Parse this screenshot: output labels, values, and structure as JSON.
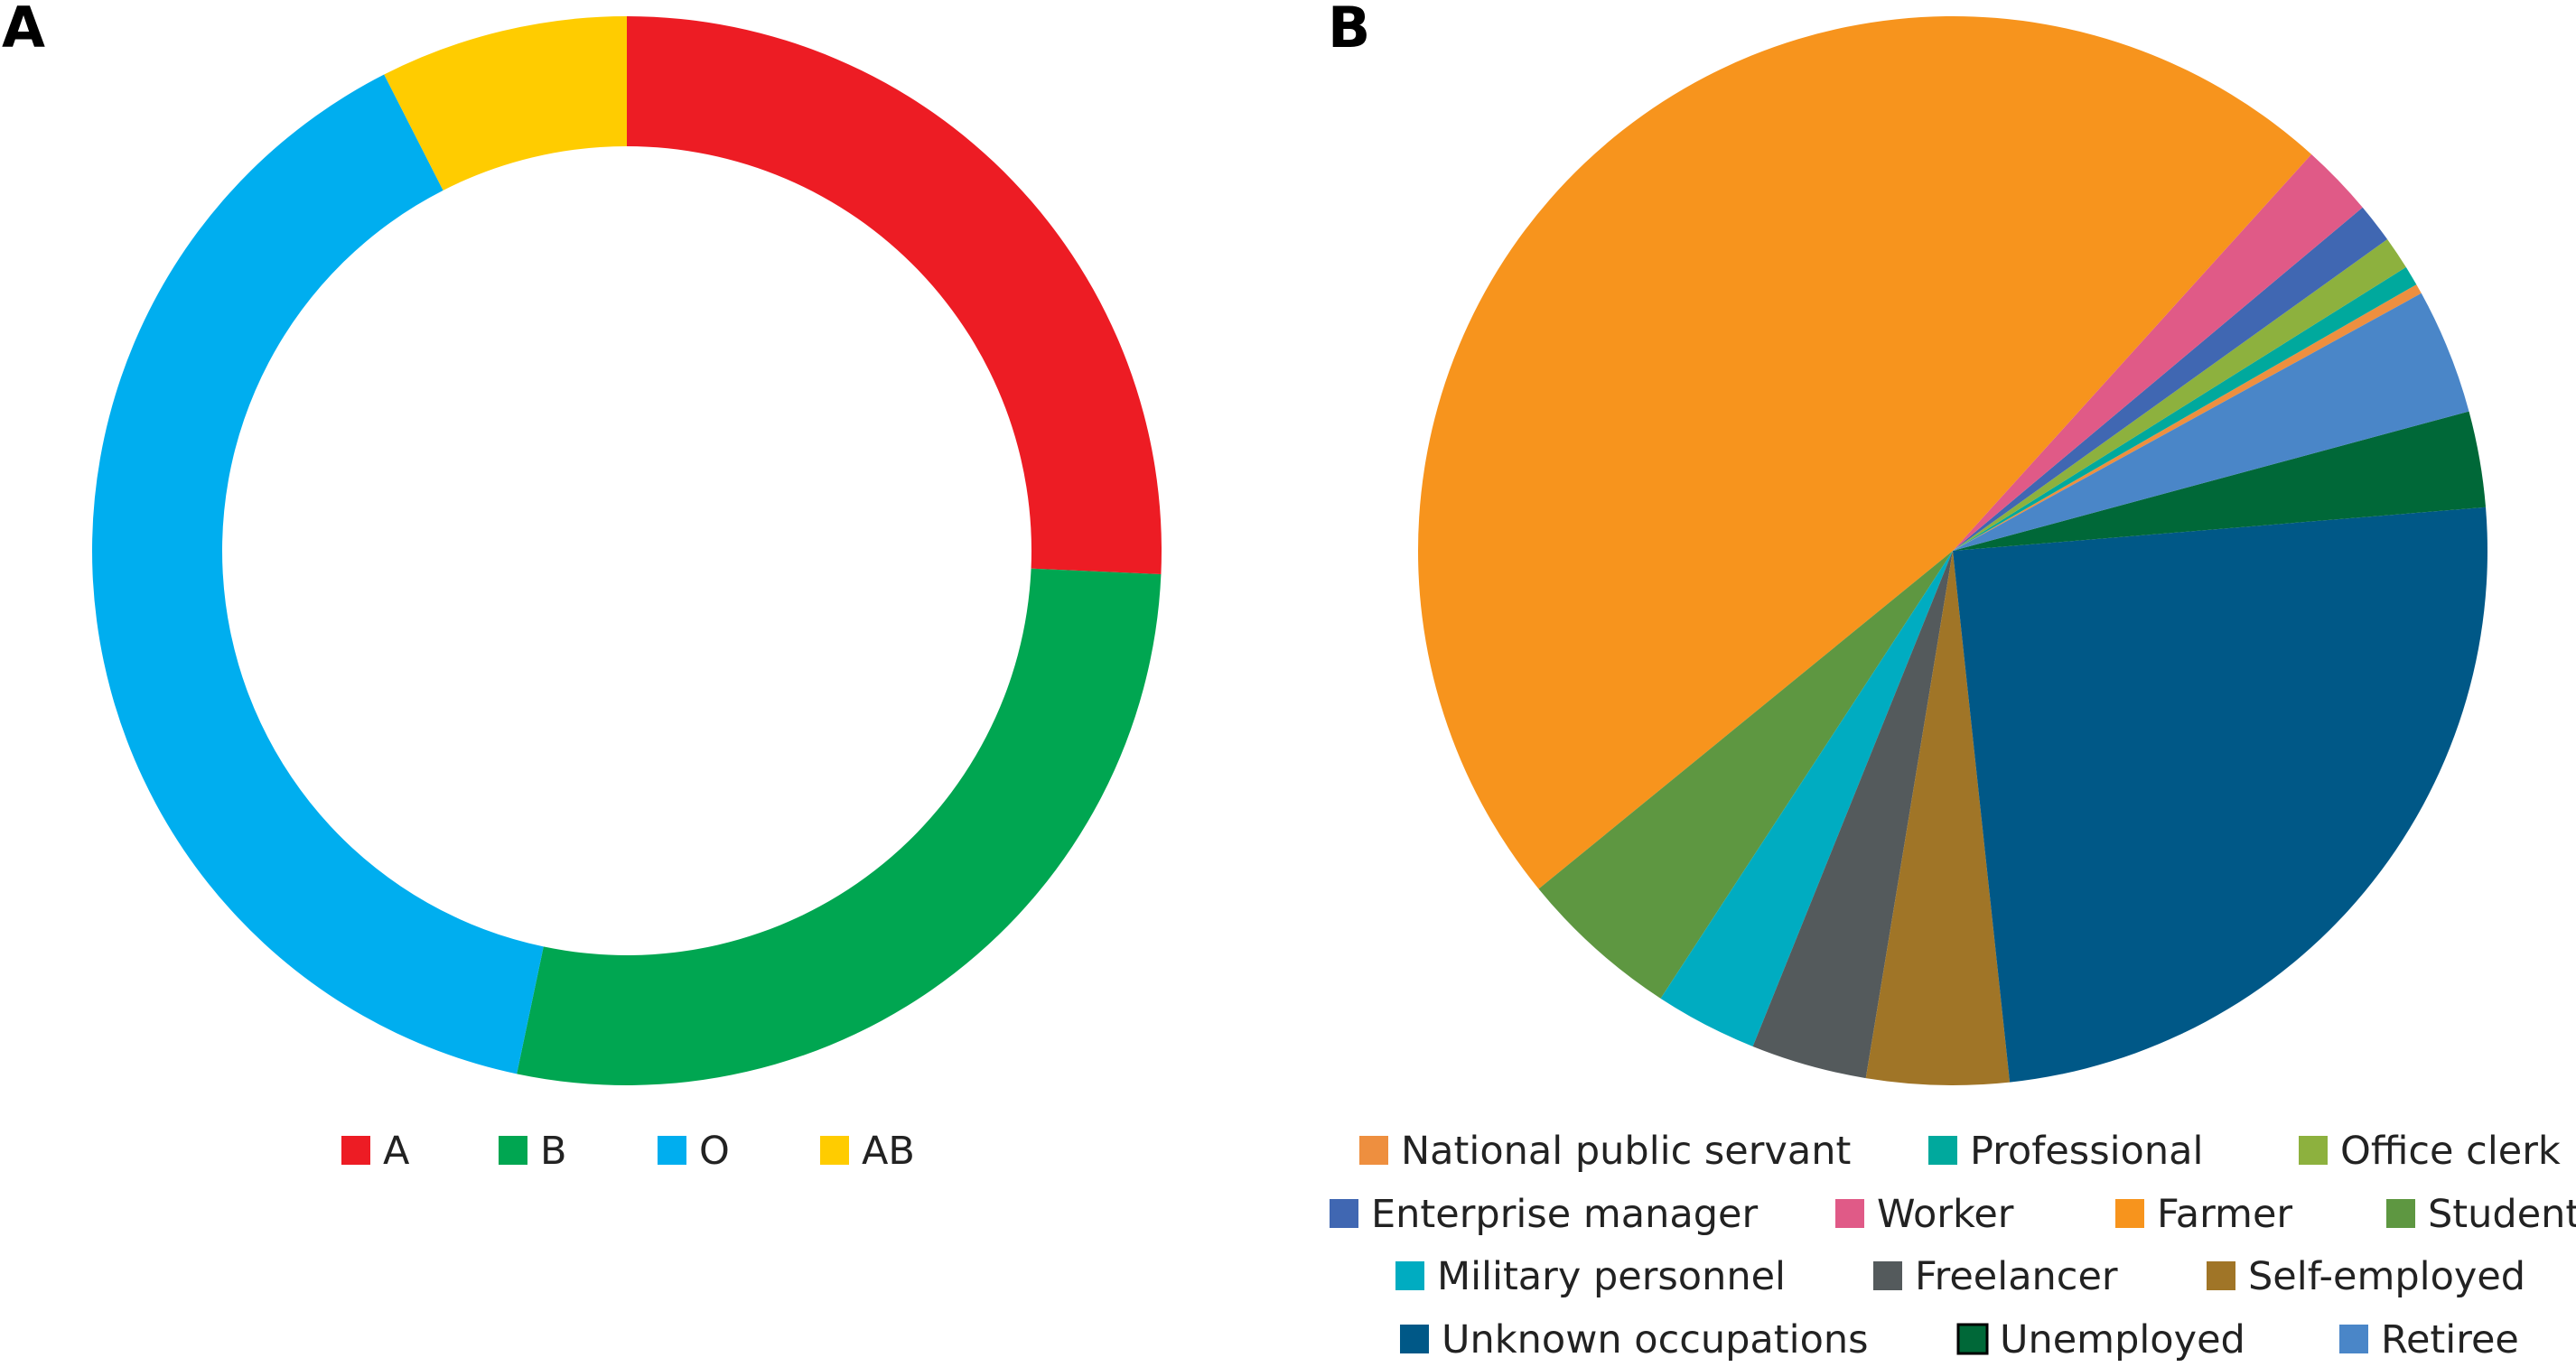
{
  "chart_data": [
    {
      "panel": "A",
      "type": "pie",
      "donut": true,
      "legend_position": "bottom",
      "slices": [
        {
          "label": "A",
          "value": 25.7,
          "color": "#ED1C24"
        },
        {
          "label": "B",
          "value": 27.6,
          "color": "#00A651"
        },
        {
          "label": "O",
          "value": 39.2,
          "color": "#00AEEF"
        },
        {
          "label": "AB",
          "value": 7.5,
          "color": "#FFCC00"
        }
      ]
    },
    {
      "panel": "B",
      "type": "pie",
      "legend_position": "bottom",
      "slices": [
        {
          "label": "National public servant",
          "value": 0.3,
          "color": "#EE8F3F"
        },
        {
          "label": "Professional",
          "value": 0.6,
          "color": "#00A99D"
        },
        {
          "label": "Office clerk",
          "value": 1.0,
          "color": "#8DB13E"
        },
        {
          "label": "Enterprise manager",
          "value": 1.2,
          "color": "#4067B2"
        },
        {
          "label": "Worker",
          "value": 2.2,
          "color": "#E05A87"
        },
        {
          "label": "Farmer",
          "value": 47.6,
          "color": "#F7941D"
        },
        {
          "label": "Student",
          "value": 4.9,
          "color": "#5E9741"
        },
        {
          "label": "Military personnel",
          "value": 3.1,
          "color": "#00ACC1"
        },
        {
          "label": "Freelancer",
          "value": 3.5,
          "color": "#545A5C"
        },
        {
          "label": "Self-employed",
          "value": 4.3,
          "color": "#A07527"
        },
        {
          "label": "Unknown occupations",
          "value": 24.6,
          "color": "#005887"
        },
        {
          "label": "Unemployed",
          "value": 2.9,
          "color": "#006838"
        },
        {
          "label": "Retiree",
          "value": 3.8,
          "color": "#4A86C8"
        }
      ]
    }
  ]
}
